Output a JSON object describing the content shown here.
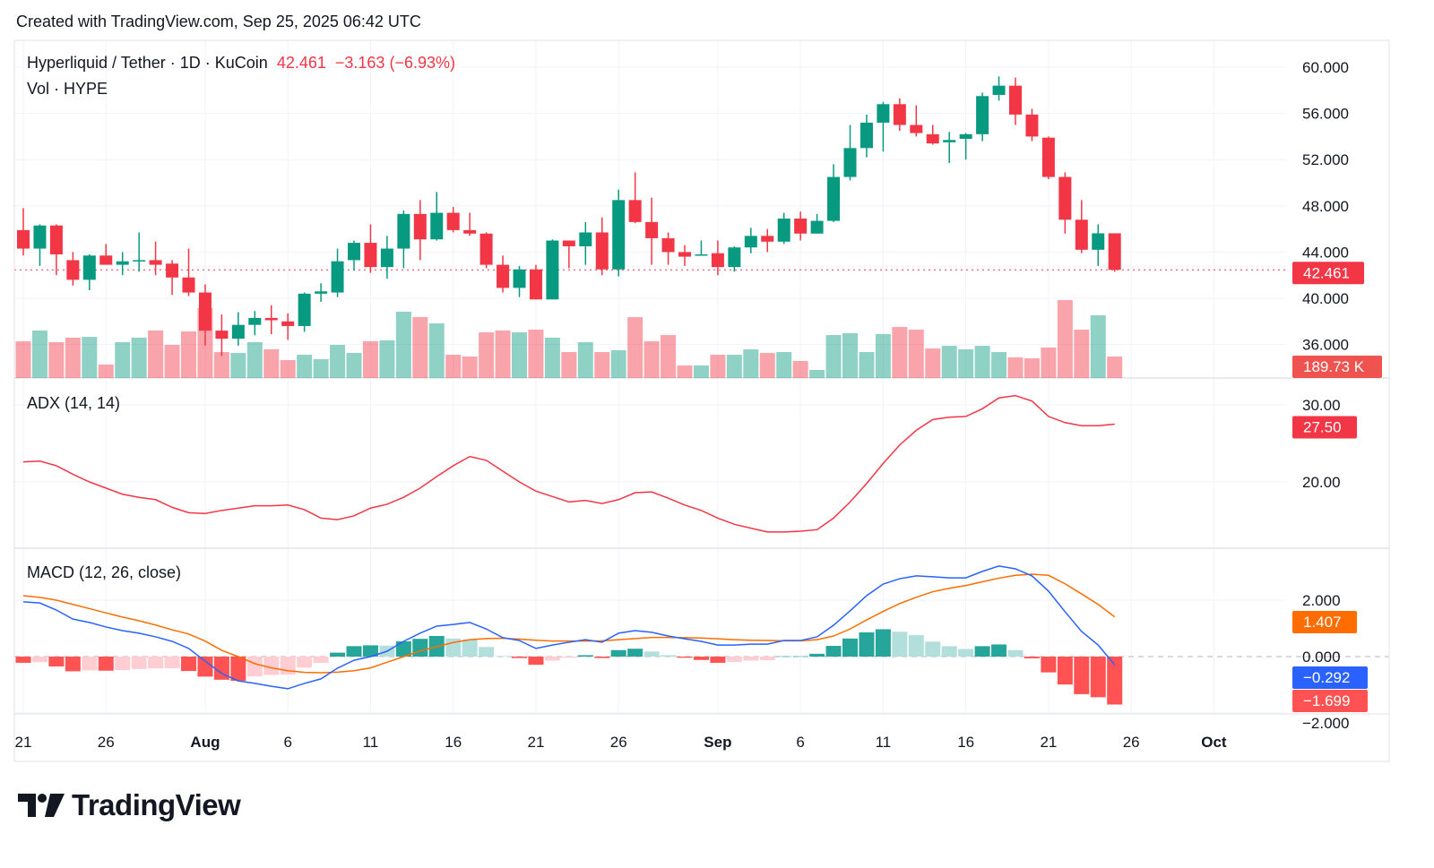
{
  "header": {
    "created": "Created with TradingView.com, Sep 25, 2025 06:42 UTC"
  },
  "legend": {
    "symbol": "Hyperliquid / Tether · 1D · KuCoin",
    "last": "42.461",
    "change": "−3.163 (−6.93%)",
    "volume": "Vol · HYPE",
    "adx": "ADX (14, 14)",
    "macd": "MACD (12, 26, close)"
  },
  "colors": {
    "up": "#089981",
    "down": "#F23645",
    "adx": "#F23645",
    "macd": "#2962FF",
    "signal": "#FF6D00",
    "hist_up_grow": "#26A69A",
    "hist_up_fall": "#B2DFDB",
    "hist_down_grow": "#FFCDD2",
    "hist_down_fall": "#FF5252"
  },
  "badges": {
    "price": "42.461",
    "volume": "189.73 K",
    "adx": "27.50",
    "signal": "1.407",
    "macd": "−0.292",
    "hist": "−1.699"
  },
  "footer": {
    "brand": "TradingView"
  },
  "chart_data": [
    {
      "type": "candlestick",
      "title": "Hyperliquid / Tether · 1D · KuCoin",
      "price_ticks": [
        "60.000",
        "56.000",
        "52.000",
        "48.000",
        "44.000",
        "40.000",
        "36.000"
      ],
      "ylim": [
        33.5,
        62.3
      ],
      "grid": true,
      "x_ticks": [
        {
          "label": "21",
          "date": "2025-07-21"
        },
        {
          "label": "26",
          "date": "2025-07-26"
        },
        {
          "label": "Aug",
          "date": "2025-08-01",
          "bold": true
        },
        {
          "label": "6",
          "date": "2025-08-06"
        },
        {
          "label": "11",
          "date": "2025-08-11"
        },
        {
          "label": "16",
          "date": "2025-08-16"
        },
        {
          "label": "21",
          "date": "2025-08-21"
        },
        {
          "label": "26",
          "date": "2025-08-26"
        },
        {
          "label": "Sep",
          "date": "2025-09-01",
          "bold": true
        },
        {
          "label": "6",
          "date": "2025-09-06"
        },
        {
          "label": "11",
          "date": "2025-09-11"
        },
        {
          "label": "16",
          "date": "2025-09-16"
        },
        {
          "label": "21",
          "date": "2025-09-21"
        },
        {
          "label": "26",
          "date": "2025-09-26"
        },
        {
          "label": "Oct",
          "date": "2025-10-01",
          "bold": true
        }
      ],
      "x": [
        "2025-07-21",
        "2025-07-22",
        "2025-07-23",
        "2025-07-24",
        "2025-07-25",
        "2025-07-26",
        "2025-07-27",
        "2025-07-28",
        "2025-07-29",
        "2025-07-30",
        "2025-07-31",
        "2025-08-01",
        "2025-08-02",
        "2025-08-03",
        "2025-08-04",
        "2025-08-05",
        "2025-08-06",
        "2025-08-07",
        "2025-08-08",
        "2025-08-09",
        "2025-08-10",
        "2025-08-11",
        "2025-08-12",
        "2025-08-13",
        "2025-08-14",
        "2025-08-15",
        "2025-08-16",
        "2025-08-17",
        "2025-08-18",
        "2025-08-19",
        "2025-08-20",
        "2025-08-21",
        "2025-08-22",
        "2025-08-23",
        "2025-08-24",
        "2025-08-25",
        "2025-08-26",
        "2025-08-27",
        "2025-08-28",
        "2025-08-29",
        "2025-08-30",
        "2025-08-31",
        "2025-09-01",
        "2025-09-02",
        "2025-09-03",
        "2025-09-04",
        "2025-09-05",
        "2025-09-06",
        "2025-09-07",
        "2025-09-08",
        "2025-09-09",
        "2025-09-10",
        "2025-09-11",
        "2025-09-12",
        "2025-09-13",
        "2025-09-14",
        "2025-09-15",
        "2025-09-16",
        "2025-09-17",
        "2025-09-18",
        "2025-09-19",
        "2025-09-20",
        "2025-09-21",
        "2025-09-22",
        "2025-09-23",
        "2025-09-24",
        "2025-09-25"
      ],
      "ohlc": [
        [
          45.9,
          47.8,
          43.7,
          44.3
        ],
        [
          44.3,
          46.4,
          42.8,
          46.3
        ],
        [
          46.3,
          46.4,
          42.0,
          43.8
        ],
        [
          43.3,
          44.0,
          41.1,
          41.6
        ],
        [
          41.6,
          43.8,
          40.7,
          43.7
        ],
        [
          43.7,
          44.7,
          42.9,
          42.9
        ],
        [
          42.9,
          44.0,
          42.0,
          43.2
        ],
        [
          43.2,
          45.7,
          42.3,
          43.3
        ],
        [
          43.3,
          44.9,
          42.0,
          42.9
        ],
        [
          43.0,
          43.3,
          40.3,
          41.8
        ],
        [
          41.8,
          44.3,
          40.2,
          40.5
        ],
        [
          40.5,
          41.2,
          35.9,
          37.2
        ],
        [
          37.2,
          38.6,
          35.0,
          36.5
        ],
        [
          36.5,
          38.8,
          35.9,
          37.7
        ],
        [
          37.7,
          38.9,
          36.8,
          38.3
        ],
        [
          38.3,
          39.4,
          36.9,
          38.1
        ],
        [
          38.0,
          38.7,
          36.4,
          37.6
        ],
        [
          37.6,
          40.5,
          37.1,
          40.4
        ],
        [
          40.4,
          41.3,
          39.7,
          40.6
        ],
        [
          40.5,
          44.3,
          40.1,
          43.2
        ],
        [
          43.3,
          45.0,
          42.4,
          44.8
        ],
        [
          44.8,
          46.4,
          42.2,
          42.7
        ],
        [
          42.7,
          45.4,
          41.7,
          44.3
        ],
        [
          44.3,
          47.6,
          42.6,
          47.3
        ],
        [
          47.3,
          48.5,
          43.3,
          45.1
        ],
        [
          45.1,
          49.2,
          45.0,
          47.4
        ],
        [
          47.4,
          47.9,
          45.7,
          45.9
        ],
        [
          45.9,
          47.4,
          45.4,
          45.6
        ],
        [
          45.6,
          45.7,
          42.6,
          42.9
        ],
        [
          42.9,
          43.7,
          40.5,
          40.9
        ],
        [
          40.9,
          42.8,
          40.1,
          42.5
        ],
        [
          42.5,
          42.9,
          39.9,
          39.9
        ],
        [
          39.9,
          45.1,
          39.9,
          45.0
        ],
        [
          45.0,
          45.0,
          42.6,
          44.5
        ],
        [
          44.5,
          46.6,
          42.9,
          45.7
        ],
        [
          45.7,
          47.0,
          42.0,
          42.5
        ],
        [
          42.5,
          49.4,
          41.9,
          48.5
        ],
        [
          48.5,
          50.9,
          46.5,
          46.6
        ],
        [
          46.6,
          48.7,
          42.9,
          45.2
        ],
        [
          45.2,
          45.7,
          42.9,
          44.0
        ],
        [
          44.0,
          44.6,
          42.8,
          43.6
        ],
        [
          43.7,
          45.0,
          43.7,
          43.8
        ],
        [
          43.9,
          45.0,
          42.0,
          42.7
        ],
        [
          42.7,
          44.5,
          42.3,
          44.4
        ],
        [
          44.4,
          46.1,
          43.9,
          45.4
        ],
        [
          45.4,
          46.0,
          44.0,
          44.9
        ],
        [
          44.9,
          47.4,
          44.7,
          46.9
        ],
        [
          46.9,
          47.5,
          45.0,
          45.6
        ],
        [
          45.6,
          47.3,
          45.6,
          46.7
        ],
        [
          46.7,
          51.6,
          46.6,
          50.5
        ],
        [
          50.5,
          55.0,
          50.2,
          53.0
        ],
        [
          53.0,
          55.9,
          52.2,
          55.2
        ],
        [
          55.2,
          57.0,
          52.7,
          56.8
        ],
        [
          56.8,
          57.3,
          54.5,
          55.0
        ],
        [
          55.0,
          56.7,
          54.0,
          54.3
        ],
        [
          54.2,
          55.0,
          53.3,
          53.4
        ],
        [
          53.5,
          54.4,
          51.7,
          53.7
        ],
        [
          53.8,
          54.3,
          52.0,
          54.2
        ],
        [
          54.2,
          57.8,
          53.6,
          57.5
        ],
        [
          57.6,
          59.2,
          57.1,
          58.4
        ],
        [
          58.4,
          59.1,
          55.0,
          55.9
        ],
        [
          55.9,
          56.4,
          53.6,
          54.0
        ],
        [
          53.9,
          54.0,
          50.3,
          50.5
        ],
        [
          50.5,
          50.9,
          45.6,
          46.8
        ],
        [
          46.8,
          48.5,
          43.9,
          44.2
        ],
        [
          44.2,
          46.4,
          42.8,
          45.624
        ],
        [
          45.624,
          45.5,
          42.3,
          42.461
        ]
      ],
      "volume_k": [
        324,
        419,
        316,
        356,
        363,
        119,
        316,
        356,
        419,
        292,
        411,
        616,
        229,
        221,
        316,
        253,
        158,
        205,
        166,
        292,
        221,
        324,
        332,
        585,
        537,
        482,
        205,
        190,
        403,
        419,
        403,
        427,
        356,
        229,
        316,
        229,
        245,
        537,
        324,
        379,
        111,
        111,
        205,
        205,
        253,
        221,
        229,
        150,
        71,
        379,
        395,
        229,
        387,
        450,
        427,
        261,
        284,
        253,
        284,
        229,
        182,
        174,
        269,
        687,
        427,
        553,
        189.73
      ],
      "last_price": 42.461
    },
    {
      "type": "line",
      "title": "ADX (14, 14)",
      "ticks": [
        "30.00",
        "20.00"
      ],
      "ylim": [
        10.6,
        33.5
      ],
      "values": [
        22.6,
        22.7,
        22.1,
        21.0,
        20.0,
        19.2,
        18.4,
        18.0,
        17.7,
        16.7,
        16.0,
        15.9,
        16.3,
        16.6,
        16.9,
        16.9,
        17.0,
        16.4,
        15.3,
        15.1,
        15.6,
        16.6,
        17.1,
        18.0,
        19.2,
        20.7,
        22.1,
        23.3,
        22.8,
        21.4,
        20.0,
        18.8,
        18.1,
        17.4,
        17.6,
        17.2,
        17.7,
        18.6,
        18.7,
        17.9,
        17.0,
        16.3,
        15.3,
        14.5,
        14.0,
        13.5,
        13.5,
        13.6,
        13.8,
        15.3,
        17.4,
        19.8,
        22.4,
        24.8,
        26.7,
        28.1,
        28.4,
        28.5,
        29.5,
        30.9,
        31.2,
        30.5,
        28.5,
        27.7,
        27.3,
        27.3,
        27.5
      ]
    },
    {
      "type": "line+histogram",
      "title": "MACD (12, 26, close)",
      "ticks": [
        "2.000",
        "0.000",
        "−2.000"
      ],
      "ylim": [
        -2.05,
        3.8
      ],
      "macd": [
        1.94,
        1.9,
        1.65,
        1.33,
        1.21,
        1.05,
        0.92,
        0.83,
        0.7,
        0.54,
        0.29,
        -0.16,
        -0.6,
        -0.86,
        -0.95,
        -1.05,
        -1.14,
        -0.95,
        -0.79,
        -0.41,
        -0.13,
        0.0,
        0.19,
        0.54,
        0.83,
        1.08,
        1.14,
        1.21,
        0.98,
        0.67,
        0.57,
        0.29,
        0.41,
        0.51,
        0.6,
        0.51,
        0.83,
        0.92,
        0.86,
        0.73,
        0.63,
        0.54,
        0.41,
        0.41,
        0.44,
        0.44,
        0.57,
        0.57,
        0.7,
        1.11,
        1.62,
        2.16,
        2.57,
        2.76,
        2.86,
        2.83,
        2.79,
        2.79,
        3.02,
        3.21,
        3.11,
        2.86,
        2.32,
        1.59,
        0.89,
        0.41,
        -0.292
      ],
      "signal": [
        2.16,
        2.1,
        2.0,
        1.85,
        1.7,
        1.55,
        1.4,
        1.27,
        1.12,
        0.95,
        0.8,
        0.55,
        0.22,
        0.0,
        -0.25,
        -0.4,
        -0.5,
        -0.56,
        -0.57,
        -0.55,
        -0.5,
        -0.4,
        -0.2,
        0.0,
        0.2,
        0.35,
        0.5,
        0.6,
        0.64,
        0.65,
        0.62,
        0.58,
        0.55,
        0.55,
        0.55,
        0.56,
        0.6,
        0.64,
        0.68,
        0.68,
        0.67,
        0.66,
        0.63,
        0.6,
        0.58,
        0.57,
        0.56,
        0.56,
        0.6,
        0.73,
        0.98,
        1.3,
        1.6,
        1.88,
        2.1,
        2.3,
        2.42,
        2.52,
        2.65,
        2.78,
        2.88,
        2.92,
        2.88,
        2.58,
        2.22,
        1.85,
        1.407
      ]
    }
  ]
}
